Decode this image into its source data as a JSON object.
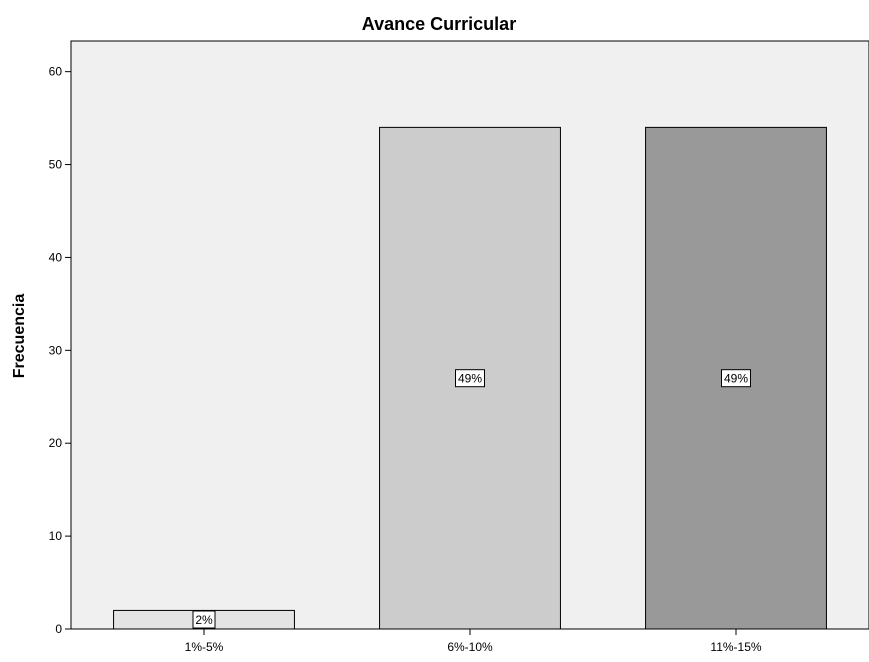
{
  "chart_data": {
    "type": "bar",
    "title": "Avance Curricular",
    "xlabel": "",
    "ylabel": "Frecuencia",
    "categories": [
      "1%-5%",
      "6%-10%",
      "11%-15%"
    ],
    "values": [
      2,
      54,
      54
    ],
    "data_labels": [
      "2%",
      "49%",
      "49%"
    ],
    "bar_colors": [
      "#e4e4e4",
      "#cccccc",
      "#999999"
    ],
    "plot_background": "#f0f0f0",
    "yticks": [
      0,
      10,
      20,
      30,
      40,
      50,
      60
    ],
    "ylim": [
      0,
      63.3
    ],
    "grid": false,
    "legend": "none"
  }
}
